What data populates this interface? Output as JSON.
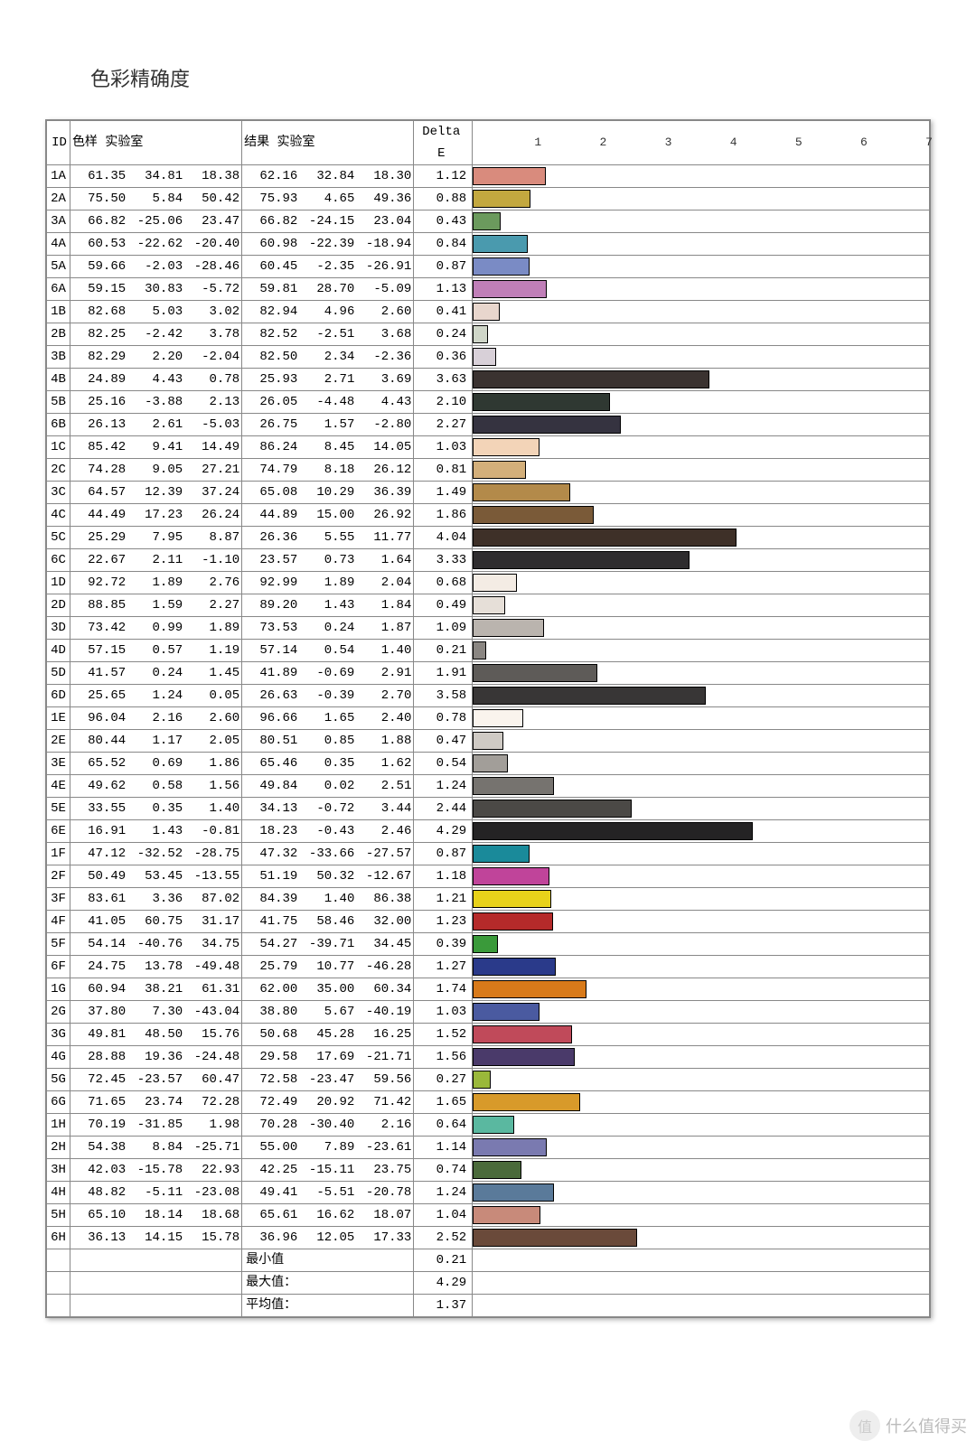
{
  "title": "色彩精确度",
  "headers": {
    "id": "ID",
    "sample": "色样  实验室",
    "result": "结果  实验室",
    "delta": "Delta E"
  },
  "chart": {
    "xmin": 0,
    "xmax": 7,
    "ticks": [
      1,
      2,
      3,
      4,
      5,
      6,
      7
    ],
    "bar_border": "#000000",
    "grid_color": "#d0d0d0"
  },
  "rows": [
    {
      "id": "1A",
      "s": [
        61.35,
        34.81,
        18.38
      ],
      "r": [
        62.16,
        32.84,
        18.3
      ],
      "d": 1.12,
      "c": "#d98b7d"
    },
    {
      "id": "2A",
      "s": [
        75.5,
        5.84,
        50.42
      ],
      "r": [
        75.93,
        4.65,
        49.36
      ],
      "d": 0.88,
      "c": "#c3a83f"
    },
    {
      "id": "3A",
      "s": [
        66.82,
        -25.06,
        23.47
      ],
      "r": [
        66.82,
        -24.15,
        23.04
      ],
      "d": 0.43,
      "c": "#6b9a5d"
    },
    {
      "id": "4A",
      "s": [
        60.53,
        -22.62,
        -20.4
      ],
      "r": [
        60.98,
        -22.39,
        -18.94
      ],
      "d": 0.84,
      "c": "#4a9aae"
    },
    {
      "id": "5A",
      "s": [
        59.66,
        -2.03,
        -28.46
      ],
      "r": [
        60.45,
        -2.35,
        -26.91
      ],
      "d": 0.87,
      "c": "#7a8bc5"
    },
    {
      "id": "6A",
      "s": [
        59.15,
        30.83,
        -5.72
      ],
      "r": [
        59.81,
        28.7,
        -5.09
      ],
      "d": 1.13,
      "c": "#c07fb8"
    },
    {
      "id": "1B",
      "s": [
        82.68,
        5.03,
        3.02
      ],
      "r": [
        82.94,
        4.96,
        2.6
      ],
      "d": 0.41,
      "c": "#e8d6cd"
    },
    {
      "id": "2B",
      "s": [
        82.25,
        -2.42,
        3.78
      ],
      "r": [
        82.52,
        -2.51,
        3.68
      ],
      "d": 0.24,
      "c": "#cfd6c8"
    },
    {
      "id": "3B",
      "s": [
        82.29,
        2.2,
        -2.04
      ],
      "r": [
        82.5,
        2.34,
        -2.36
      ],
      "d": 0.36,
      "c": "#d8d0d8"
    },
    {
      "id": "4B",
      "s": [
        24.89,
        4.43,
        0.78
      ],
      "r": [
        25.93,
        2.71,
        3.69
      ],
      "d": 3.63,
      "c": "#3a3230"
    },
    {
      "id": "5B",
      "s": [
        25.16,
        -3.88,
        2.13
      ],
      "r": [
        26.05,
        -4.48,
        4.43
      ],
      "d": 2.1,
      "c": "#2f3832"
    },
    {
      "id": "6B",
      "s": [
        26.13,
        2.61,
        -5.03
      ],
      "r": [
        26.75,
        1.57,
        -2.8
      ],
      "d": 2.27,
      "c": "#353340"
    },
    {
      "id": "1C",
      "s": [
        85.42,
        9.41,
        14.49
      ],
      "r": [
        86.24,
        8.45,
        14.05
      ],
      "d": 1.03,
      "c": "#f3d4b8"
    },
    {
      "id": "2C",
      "s": [
        74.28,
        9.05,
        27.21
      ],
      "r": [
        74.79,
        8.18,
        26.12
      ],
      "d": 0.81,
      "c": "#d3af7a"
    },
    {
      "id": "3C",
      "s": [
        64.57,
        12.39,
        37.24
      ],
      "r": [
        65.08,
        10.29,
        36.39
      ],
      "d": 1.49,
      "c": "#b38a4a"
    },
    {
      "id": "4C",
      "s": [
        44.49,
        17.23,
        26.24
      ],
      "r": [
        44.89,
        15.0,
        26.92
      ],
      "d": 1.86,
      "c": "#7a5a38"
    },
    {
      "id": "5C",
      "s": [
        25.29,
        7.95,
        8.87
      ],
      "r": [
        26.36,
        5.55,
        11.77
      ],
      "d": 4.04,
      "c": "#3e3028"
    },
    {
      "id": "6C",
      "s": [
        22.67,
        2.11,
        -1.1
      ],
      "r": [
        23.57,
        0.73,
        1.64
      ],
      "d": 3.33,
      "c": "#2e2c2e"
    },
    {
      "id": "1D",
      "s": [
        92.72,
        1.89,
        2.76
      ],
      "r": [
        92.99,
        1.89,
        2.04
      ],
      "d": 0.68,
      "c": "#f4ece4"
    },
    {
      "id": "2D",
      "s": [
        88.85,
        1.59,
        2.27
      ],
      "r": [
        89.2,
        1.43,
        1.84
      ],
      "d": 0.49,
      "c": "#e6dfd8"
    },
    {
      "id": "3D",
      "s": [
        73.42,
        0.99,
        1.89
      ],
      "r": [
        73.53,
        0.24,
        1.87
      ],
      "d": 1.09,
      "c": "#bab4ae"
    },
    {
      "id": "4D",
      "s": [
        57.15,
        0.57,
        1.19
      ],
      "r": [
        57.14,
        0.54,
        1.4
      ],
      "d": 0.21,
      "c": "#8a8682"
    },
    {
      "id": "5D",
      "s": [
        41.57,
        0.24,
        1.45
      ],
      "r": [
        41.89,
        -0.69,
        2.91
      ],
      "d": 1.91,
      "c": "#5e5b58"
    },
    {
      "id": "6D",
      "s": [
        25.65,
        1.24,
        0.05
      ],
      "r": [
        26.63,
        -0.39,
        2.7
      ],
      "d": 3.58,
      "c": "#383636"
    },
    {
      "id": "1E",
      "s": [
        96.04,
        2.16,
        2.6
      ],
      "r": [
        96.66,
        1.65,
        2.4
      ],
      "d": 0.78,
      "c": "#faf4ed"
    },
    {
      "id": "2E",
      "s": [
        80.44,
        1.17,
        2.05
      ],
      "r": [
        80.51,
        0.85,
        1.88
      ],
      "d": 0.47,
      "c": "#cfcac4"
    },
    {
      "id": "3E",
      "s": [
        65.52,
        0.69,
        1.86
      ],
      "r": [
        65.46,
        0.35,
        1.62
      ],
      "d": 0.54,
      "c": "#a29e99"
    },
    {
      "id": "4E",
      "s": [
        49.62,
        0.58,
        1.56
      ],
      "r": [
        49.84,
        0.02,
        2.51
      ],
      "d": 1.24,
      "c": "#76736f"
    },
    {
      "id": "5E",
      "s": [
        33.55,
        0.35,
        1.4
      ],
      "r": [
        34.13,
        -0.72,
        3.44
      ],
      "d": 2.44,
      "c": "#4b4946"
    },
    {
      "id": "6E",
      "s": [
        16.91,
        1.43,
        -0.81
      ],
      "r": [
        18.23,
        -0.43,
        2.46
      ],
      "d": 4.29,
      "c": "#242324"
    },
    {
      "id": "1F",
      "s": [
        47.12,
        -32.52,
        -28.75
      ],
      "r": [
        47.32,
        -33.66,
        -27.57
      ],
      "d": 0.87,
      "c": "#1a8a9a"
    },
    {
      "id": "2F",
      "s": [
        50.49,
        53.45,
        -13.55
      ],
      "r": [
        51.19,
        50.32,
        -12.67
      ],
      "d": 1.18,
      "c": "#c0449a"
    },
    {
      "id": "3F",
      "s": [
        83.61,
        3.36,
        87.02
      ],
      "r": [
        84.39,
        1.4,
        86.38
      ],
      "d": 1.21,
      "c": "#e8d21a"
    },
    {
      "id": "4F",
      "s": [
        41.05,
        60.75,
        31.17
      ],
      "r": [
        41.75,
        58.46,
        32.0
      ],
      "d": 1.23,
      "c": "#b52a2a"
    },
    {
      "id": "5F",
      "s": [
        54.14,
        -40.76,
        34.75
      ],
      "r": [
        54.27,
        -39.71,
        34.45
      ],
      "d": 0.39,
      "c": "#3a9a3a"
    },
    {
      "id": "6F",
      "s": [
        24.75,
        13.78,
        -49.48
      ],
      "r": [
        25.79,
        10.77,
        -46.28
      ],
      "d": 1.27,
      "c": "#2a3a8a"
    },
    {
      "id": "1G",
      "s": [
        60.94,
        38.21,
        61.31
      ],
      "r": [
        62.0,
        35.0,
        60.34
      ],
      "d": 1.74,
      "c": "#d87a1a"
    },
    {
      "id": "2G",
      "s": [
        37.8,
        7.3,
        -43.04
      ],
      "r": [
        38.8,
        5.67,
        -40.19
      ],
      "d": 1.03,
      "c": "#4a5aa0"
    },
    {
      "id": "3G",
      "s": [
        49.81,
        48.5,
        15.76
      ],
      "r": [
        50.68,
        45.28,
        16.25
      ],
      "d": 1.52,
      "c": "#c04a5a"
    },
    {
      "id": "4G",
      "s": [
        28.88,
        19.36,
        -24.48
      ],
      "r": [
        29.58,
        17.69,
        -21.71
      ],
      "d": 1.56,
      "c": "#4a3a6a"
    },
    {
      "id": "5G",
      "s": [
        72.45,
        -23.57,
        60.47
      ],
      "r": [
        72.58,
        -23.47,
        59.56
      ],
      "d": 0.27,
      "c": "#9ab83a"
    },
    {
      "id": "6G",
      "s": [
        71.65,
        23.74,
        72.28
      ],
      "r": [
        72.49,
        20.92,
        71.42
      ],
      "d": 1.65,
      "c": "#d89a2a"
    },
    {
      "id": "1H",
      "s": [
        70.19,
        -31.85,
        1.98
      ],
      "r": [
        70.28,
        -30.4,
        2.16
      ],
      "d": 0.64,
      "c": "#5ab8a0"
    },
    {
      "id": "2H",
      "s": [
        54.38,
        8.84,
        -25.71
      ],
      "r": [
        55.0,
        7.89,
        -23.61
      ],
      "d": 1.14,
      "c": "#7a7ab0"
    },
    {
      "id": "3H",
      "s": [
        42.03,
        -15.78,
        22.93
      ],
      "r": [
        42.25,
        -15.11,
        23.75
      ],
      "d": 0.74,
      "c": "#4a6a3a"
    },
    {
      "id": "4H",
      "s": [
        48.82,
        -5.11,
        -23.08
      ],
      "r": [
        49.41,
        -5.51,
        -20.78
      ],
      "d": 1.24,
      "c": "#5a7a9a"
    },
    {
      "id": "5H",
      "s": [
        65.1,
        18.14,
        18.68
      ],
      "r": [
        65.61,
        16.62,
        18.07
      ],
      "d": 1.04,
      "c": "#c88a7a"
    },
    {
      "id": "6H",
      "s": [
        36.13,
        14.15,
        15.78
      ],
      "r": [
        36.96,
        12.05,
        17.33
      ],
      "d": 2.52,
      "c": "#6a4a3a"
    }
  ],
  "summary": [
    {
      "label": "最小值",
      "value": 0.21
    },
    {
      "label": "最大值：",
      "value": 4.29
    },
    {
      "label": "平均值：",
      "value": 1.37
    }
  ],
  "watermark": {
    "icon": "值",
    "text": "什么值得买"
  }
}
